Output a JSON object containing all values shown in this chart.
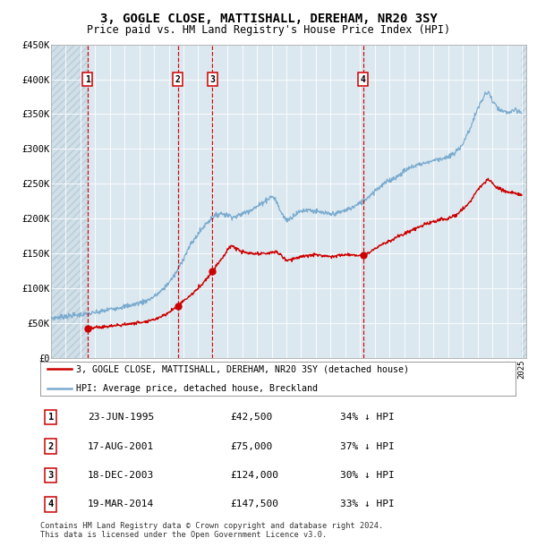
{
  "title": "3, GOGLE CLOSE, MATTISHALL, DEREHAM, NR20 3SY",
  "subtitle": "Price paid vs. HM Land Registry's House Price Index (HPI)",
  "x_start_year": 1993,
  "x_end_year": 2025,
  "y_min": 0,
  "y_max": 450000,
  "y_ticks": [
    0,
    50000,
    100000,
    150000,
    200000,
    250000,
    300000,
    350000,
    400000,
    450000
  ],
  "y_tick_labels": [
    "£0",
    "£50K",
    "£100K",
    "£150K",
    "£200K",
    "£250K",
    "£300K",
    "£350K",
    "£400K",
    "£450K"
  ],
  "sales": [
    {
      "num": 1,
      "date_year": 1995.472,
      "price": 42500,
      "pct": "34%",
      "label": "23-JUN-1995"
    },
    {
      "num": 2,
      "date_year": 2001.623,
      "price": 75000,
      "pct": "37%",
      "label": "17-AUG-2001"
    },
    {
      "num": 3,
      "date_year": 2003.964,
      "price": 124000,
      "pct": "30%",
      "label": "18-DEC-2003"
    },
    {
      "num": 4,
      "date_year": 2014.216,
      "price": 147500,
      "pct": "33%",
      "label": "19-MAR-2014"
    }
  ],
  "legend_label_red": "3, GOGLE CLOSE, MATTISHALL, DEREHAM, NR20 3SY (detached house)",
  "legend_label_blue": "HPI: Average price, detached house, Breckland",
  "footer": "Contains HM Land Registry data © Crown copyright and database right 2024.\nThis data is licensed under the Open Government Licence v3.0.",
  "bg_color": "#dce8f0",
  "hatch_color": "#b8cdd8",
  "grid_color": "#ffffff",
  "red_line_color": "#cc0000",
  "blue_line_color": "#7aabcf",
  "vline_color": "#cc0000",
  "box_edge_color": "#cc0000",
  "hpi_waypoints": [
    [
      1993.0,
      57000
    ],
    [
      1994.0,
      60000
    ],
    [
      1995.0,
      62000
    ],
    [
      1995.5,
      63000
    ],
    [
      1996.0,
      65000
    ],
    [
      1996.5,
      67000
    ],
    [
      1997.0,
      70000
    ],
    [
      1997.5,
      72000
    ],
    [
      1998.0,
      74000
    ],
    [
      1998.5,
      76000
    ],
    [
      1999.0,
      79000
    ],
    [
      1999.5,
      82000
    ],
    [
      2000.0,
      88000
    ],
    [
      2000.5,
      96000
    ],
    [
      2001.0,
      108000
    ],
    [
      2001.5,
      122000
    ],
    [
      2002.0,
      143000
    ],
    [
      2002.5,
      163000
    ],
    [
      2003.0,
      178000
    ],
    [
      2003.5,
      192000
    ],
    [
      2004.0,
      202000
    ],
    [
      2004.5,
      208000
    ],
    [
      2005.0,
      205000
    ],
    [
      2005.5,
      202000
    ],
    [
      2006.0,
      207000
    ],
    [
      2006.5,
      212000
    ],
    [
      2007.0,
      217000
    ],
    [
      2007.5,
      225000
    ],
    [
      2008.0,
      232000
    ],
    [
      2008.25,
      228000
    ],
    [
      2008.5,
      215000
    ],
    [
      2008.75,
      205000
    ],
    [
      2009.0,
      198000
    ],
    [
      2009.25,
      200000
    ],
    [
      2009.5,
      205000
    ],
    [
      2009.75,
      208000
    ],
    [
      2010.0,
      211000
    ],
    [
      2010.5,
      213000
    ],
    [
      2011.0,
      210000
    ],
    [
      2011.5,
      208000
    ],
    [
      2012.0,
      206000
    ],
    [
      2012.5,
      208000
    ],
    [
      2013.0,
      212000
    ],
    [
      2013.5,
      216000
    ],
    [
      2014.0,
      222000
    ],
    [
      2014.5,
      230000
    ],
    [
      2015.0,
      240000
    ],
    [
      2015.5,
      248000
    ],
    [
      2016.0,
      255000
    ],
    [
      2016.5,
      260000
    ],
    [
      2017.0,
      268000
    ],
    [
      2017.5,
      274000
    ],
    [
      2018.0,
      278000
    ],
    [
      2018.5,
      280000
    ],
    [
      2019.0,
      284000
    ],
    [
      2019.5,
      286000
    ],
    [
      2020.0,
      288000
    ],
    [
      2020.5,
      295000
    ],
    [
      2021.0,
      308000
    ],
    [
      2021.5,
      330000
    ],
    [
      2022.0,
      358000
    ],
    [
      2022.5,
      378000
    ],
    [
      2022.75,
      382000
    ],
    [
      2023.0,
      368000
    ],
    [
      2023.5,
      355000
    ],
    [
      2024.0,
      352000
    ],
    [
      2024.5,
      355000
    ],
    [
      2025.0,
      352000
    ]
  ],
  "red_waypoints": [
    [
      1995.472,
      42500
    ],
    [
      1996.0,
      43500
    ],
    [
      1997.0,
      45500
    ],
    [
      1998.0,
      48000
    ],
    [
      1999.0,
      51000
    ],
    [
      2000.0,
      55000
    ],
    [
      2000.5,
      60000
    ],
    [
      2001.0,
      65000
    ],
    [
      2001.623,
      75000
    ],
    [
      2002.0,
      82000
    ],
    [
      2002.5,
      90000
    ],
    [
      2003.0,
      100000
    ],
    [
      2003.5,
      112000
    ],
    [
      2003.964,
      124000
    ],
    [
      2004.2,
      132000
    ],
    [
      2004.5,
      140000
    ],
    [
      2004.8,
      148000
    ],
    [
      2005.0,
      155000
    ],
    [
      2005.3,
      162000
    ],
    [
      2005.5,
      158000
    ],
    [
      2006.0,
      152000
    ],
    [
      2006.5,
      150000
    ],
    [
      2007.0,
      149000
    ],
    [
      2007.5,
      150000
    ],
    [
      2008.0,
      151000
    ],
    [
      2008.3,
      153000
    ],
    [
      2008.6,
      148000
    ],
    [
      2009.0,
      140000
    ],
    [
      2009.5,
      143000
    ],
    [
      2010.0,
      145000
    ],
    [
      2010.5,
      147000
    ],
    [
      2011.0,
      148000
    ],
    [
      2011.5,
      147000
    ],
    [
      2012.0,
      146000
    ],
    [
      2012.5,
      147000
    ],
    [
      2013.0,
      148000
    ],
    [
      2013.5,
      148000
    ],
    [
      2014.216,
      147500
    ],
    [
      2014.5,
      150000
    ],
    [
      2015.0,
      157000
    ],
    [
      2015.5,
      163000
    ],
    [
      2016.0,
      168000
    ],
    [
      2016.5,
      173000
    ],
    [
      2017.0,
      178000
    ],
    [
      2017.5,
      183000
    ],
    [
      2018.0,
      188000
    ],
    [
      2018.5,
      192000
    ],
    [
      2019.0,
      196000
    ],
    [
      2019.5,
      198000
    ],
    [
      2020.0,
      200000
    ],
    [
      2020.5,
      205000
    ],
    [
      2021.0,
      213000
    ],
    [
      2021.5,
      225000
    ],
    [
      2022.0,
      242000
    ],
    [
      2022.5,
      252000
    ],
    [
      2022.75,
      256000
    ],
    [
      2023.0,
      250000
    ],
    [
      2023.5,
      242000
    ],
    [
      2024.0,
      238000
    ],
    [
      2024.5,
      236000
    ],
    [
      2025.0,
      235000
    ]
  ]
}
